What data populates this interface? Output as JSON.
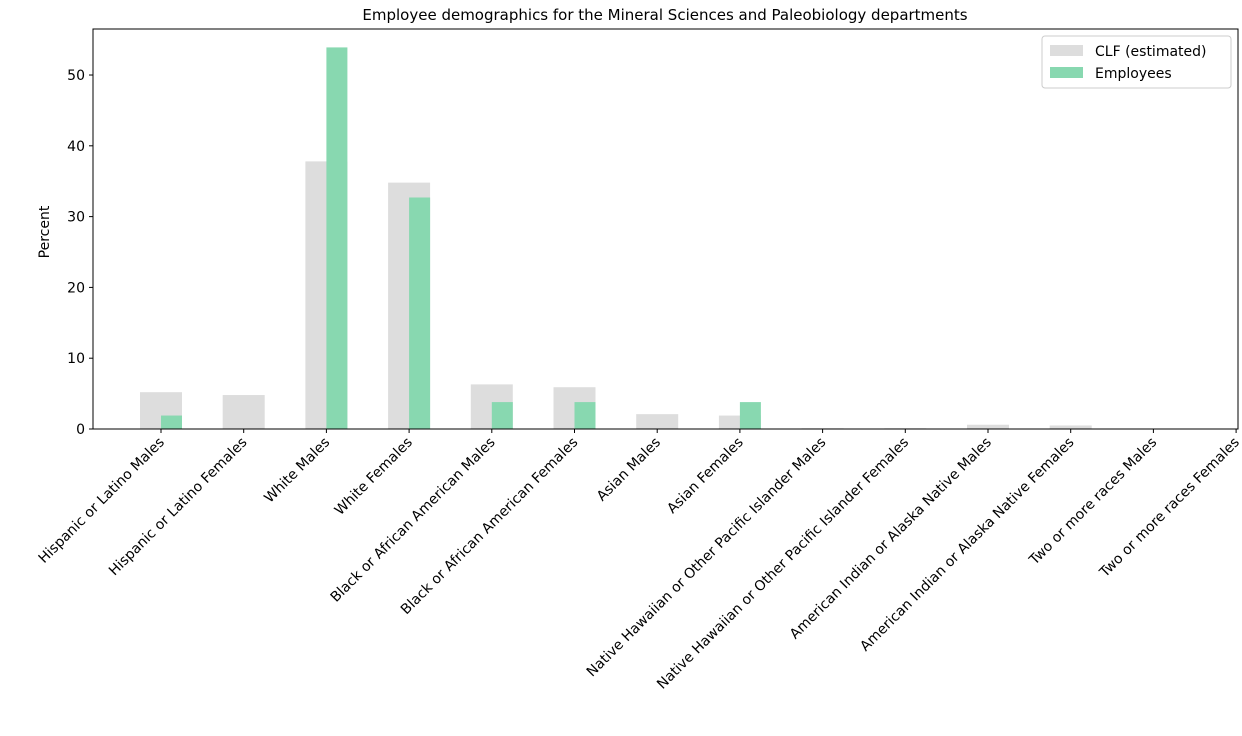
{
  "chart_data": {
    "type": "bar",
    "title": "Employee demographics for the Mineral Sciences and Paleobiology departments",
    "xlabel": "",
    "ylabel": "Percent",
    "ylim": [
      0,
      56.5
    ],
    "yticks": [
      0,
      10,
      20,
      30,
      40,
      50
    ],
    "grid": false,
    "legend_position": "top-right",
    "categories": [
      "Hispanic or Latino Males",
      "Hispanic or Latino Females",
      "White Males",
      "White Females",
      "Black or African American Males",
      "Black or African American Females",
      "Asian Males",
      "Asian Females",
      "Native Hawaiian or Other Pacific Islander Males",
      "Native Hawaiian or Other Pacific Islander Females",
      "American Indian or Alaska Native Males",
      "American Indian or Alaska Native Females",
      "Two or more races Males",
      "Two or more races Females"
    ],
    "series": [
      {
        "name": "CLF (estimated)",
        "color": "#dddddd",
        "values": [
          5.2,
          4.8,
          37.8,
          34.8,
          6.3,
          5.9,
          2.1,
          1.9,
          0.1,
          0.1,
          0.6,
          0.5,
          0.0,
          0.0
        ]
      },
      {
        "name": "Employees",
        "color": "#88d8b0",
        "values": [
          1.9,
          0,
          53.9,
          32.7,
          3.8,
          3.8,
          0,
          3.8,
          0,
          0,
          0,
          0,
          0,
          0
        ]
      }
    ]
  }
}
